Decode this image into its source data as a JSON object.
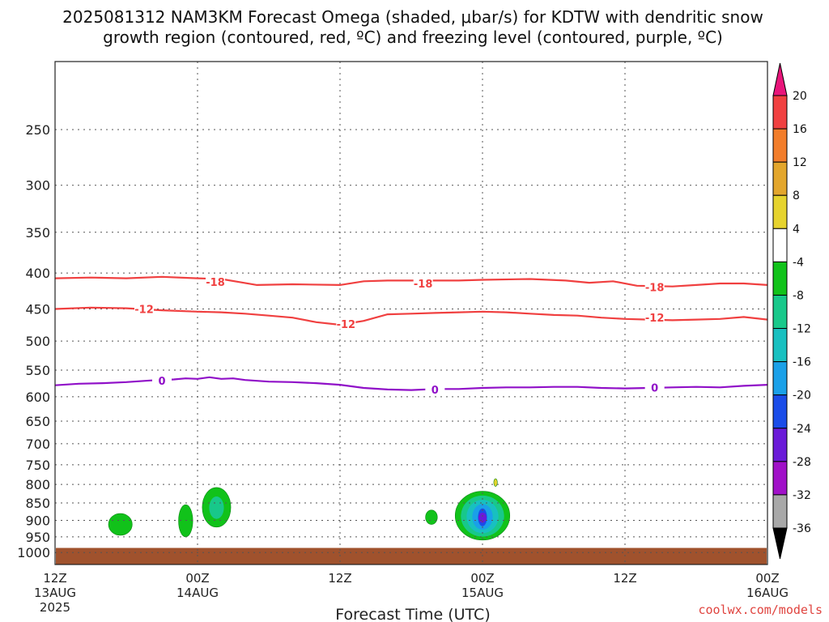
{
  "chart_data": {
    "type": "heatmap",
    "title_line1": "2025081312 NAM3KM Forecast Omega (shaded, μbar/s) for KDTW with dendritic snow",
    "title_line2": "growth region (contoured, red, ºC) and freezing level (contoured, purple, ºC)",
    "xlabel": "Forecast Time (UTC)",
    "credit": "coolwx.com/models",
    "x_range_hours": [
      0,
      60
    ],
    "y_levels": [
      250,
      300,
      350,
      400,
      450,
      500,
      550,
      600,
      650,
      700,
      750,
      800,
      850,
      900,
      950,
      1000
    ],
    "y_range": [
      200,
      1040
    ],
    "y_scale": "log-pressure",
    "x_ticks": [
      {
        "hour": 0,
        "label": "12Z",
        "sub": "13AUG",
        "sub2": "2025"
      },
      {
        "hour": 12,
        "label": "00Z",
        "sub": "14AUG",
        "sub2": ""
      },
      {
        "hour": 24,
        "label": "12Z",
        "sub": "",
        "sub2": ""
      },
      {
        "hour": 36,
        "label": "00Z",
        "sub": "15AUG",
        "sub2": ""
      },
      {
        "hour": 48,
        "label": "12Z",
        "sub": "",
        "sub2": ""
      },
      {
        "hour": 60,
        "label": "00Z",
        "sub": "16AUG",
        "sub2": ""
      }
    ],
    "grid": true,
    "colorbar": {
      "labels": [
        "20",
        "16",
        "12",
        "8",
        "4",
        "-4",
        "-8",
        "-12",
        "-16",
        "-20",
        "-24",
        "-28",
        "-32",
        "-36"
      ],
      "colors": [
        "#e8157a",
        "#f04040",
        "#f27d2a",
        "#e3a62c",
        "#e6d32e",
        "#ffffff",
        "#11c21a",
        "#18c88a",
        "#18c0c0",
        "#1aa0e8",
        "#1a4ce8",
        "#6a1ad8",
        "#a010c8",
        "#a8a8a8",
        "#000000"
      ]
    },
    "contours": [
      {
        "value": -18,
        "label": "-18",
        "color": "#f04040",
        "points": [
          [
            0,
            407
          ],
          [
            3,
            406
          ],
          [
            6,
            407
          ],
          [
            9,
            405
          ],
          [
            12,
            407
          ],
          [
            14,
            408
          ],
          [
            15.5,
            412
          ],
          [
            17,
            416
          ],
          [
            20,
            415
          ],
          [
            24,
            416
          ],
          [
            26,
            411
          ],
          [
            28,
            410
          ],
          [
            32,
            410
          ],
          [
            34,
            410
          ],
          [
            36,
            409
          ],
          [
            40,
            408
          ],
          [
            43,
            410
          ],
          [
            45,
            413
          ],
          [
            47,
            411
          ],
          [
            49,
            417
          ],
          [
            52,
            418
          ],
          [
            54,
            416
          ],
          [
            56,
            414
          ],
          [
            58,
            414
          ],
          [
            60,
            416
          ]
        ]
      },
      {
        "value": -12,
        "label": "-12",
        "color": "#f04040",
        "points": [
          [
            0,
            450
          ],
          [
            3,
            448
          ],
          [
            6,
            449
          ],
          [
            9,
            452
          ],
          [
            12,
            454
          ],
          [
            14,
            455
          ],
          [
            16,
            457
          ],
          [
            18,
            460
          ],
          [
            20,
            463
          ],
          [
            22,
            470
          ],
          [
            24,
            474
          ],
          [
            26,
            468
          ],
          [
            28,
            458
          ],
          [
            30,
            457
          ],
          [
            32,
            456
          ],
          [
            34,
            455
          ],
          [
            36,
            454
          ],
          [
            38,
            455
          ],
          [
            40,
            457
          ],
          [
            42,
            459
          ],
          [
            44,
            460
          ],
          [
            46,
            463
          ],
          [
            48,
            465
          ],
          [
            50,
            466
          ],
          [
            52,
            467
          ],
          [
            54,
            466
          ],
          [
            56,
            465
          ],
          [
            58,
            462
          ],
          [
            60,
            466
          ]
        ]
      },
      {
        "value": 0,
        "label": "0",
        "color": "#9010c8",
        "points": [
          [
            0,
            578
          ],
          [
            2,
            575
          ],
          [
            4,
            574
          ],
          [
            6,
            572
          ],
          [
            8,
            569
          ],
          [
            10,
            567
          ],
          [
            11,
            565
          ],
          [
            12,
            566
          ],
          [
            13,
            563
          ],
          [
            14,
            566
          ],
          [
            15,
            565
          ],
          [
            16,
            568
          ],
          [
            18,
            571
          ],
          [
            20,
            572
          ],
          [
            22,
            574
          ],
          [
            24,
            577
          ],
          [
            26,
            583
          ],
          [
            28,
            586
          ],
          [
            30,
            587
          ],
          [
            32,
            585
          ],
          [
            34,
            585
          ],
          [
            36,
            583
          ],
          [
            38,
            582
          ],
          [
            40,
            582
          ],
          [
            42,
            581
          ],
          [
            44,
            581
          ],
          [
            46,
            583
          ],
          [
            48,
            584
          ],
          [
            50,
            583
          ],
          [
            52,
            582
          ],
          [
            54,
            581
          ],
          [
            56,
            582
          ],
          [
            58,
            579
          ],
          [
            60,
            577
          ]
        ]
      }
    ],
    "contour_labels": [
      {
        "value": -18,
        "at": [
          13.5,
          412
        ]
      },
      {
        "value": -18,
        "at": [
          31,
          414
        ]
      },
      {
        "value": -18,
        "at": [
          50.5,
          419
        ]
      },
      {
        "value": -12,
        "at": [
          7.5,
          450
        ]
      },
      {
        "value": -12,
        "at": [
          24.5,
          473
        ]
      },
      {
        "value": -12,
        "at": [
          50.5,
          463
        ]
      },
      {
        "value": 0,
        "at": [
          9,
          569
        ]
      },
      {
        "value": 0,
        "at": [
          32,
          586
        ]
      },
      {
        "value": 0,
        "at": [
          50.5,
          582
        ]
      }
    ],
    "omega_blobs": [
      {
        "center": [
          5.5,
          908
        ],
        "hours_halfwidth": 1.0,
        "p_range": [
          880,
          945
        ],
        "levels": [
          -4
        ]
      },
      {
        "center": [
          11,
          900
        ],
        "hours_halfwidth": 0.6,
        "p_range": [
          855,
          950
        ],
        "levels": [
          -4
        ]
      },
      {
        "center": [
          13.6,
          880
        ],
        "hours_halfwidth": 1.2,
        "p_range": [
          808,
          920
        ],
        "levels": [
          -4,
          -8
        ]
      },
      {
        "center": [
          31.7,
          890
        ],
        "hours_halfwidth": 0.5,
        "p_range": [
          870,
          912
        ],
        "levels": [
          -4
        ]
      },
      {
        "center": [
          36,
          900
        ],
        "hours_halfwidth": 2.3,
        "p_range": [
          818,
          960
        ],
        "levels": [
          -4,
          -8,
          -12,
          -16,
          -20,
          -24
        ]
      },
      {
        "center": [
          37.1,
          795
        ],
        "hours_halfwidth": 0.15,
        "p_range": [
          785,
          805
        ],
        "levels": [
          4
        ]
      }
    ],
    "terrain": {
      "color": "#a0522d",
      "top_p": 985
    }
  }
}
